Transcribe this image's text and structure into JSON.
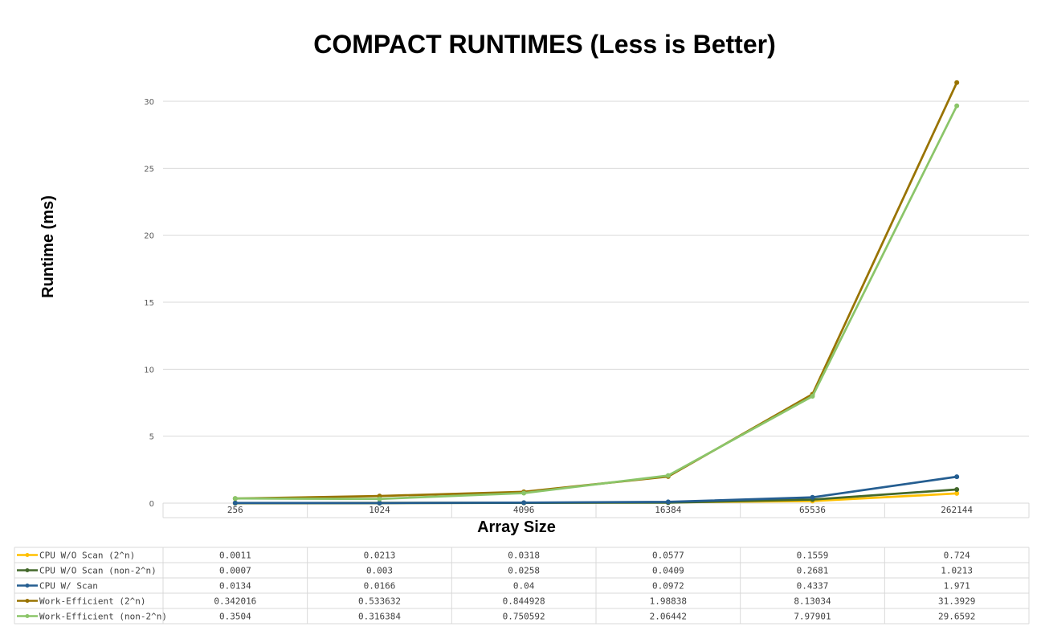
{
  "chart_data": {
    "type": "line",
    "title": "COMPACT RUNTIMES (Less is Better)",
    "xlabel": "Array Size",
    "ylabel": "Runtime (ms)",
    "categories": [
      "256",
      "1024",
      "4096",
      "16384",
      "65536",
      "262144"
    ],
    "ylim": [
      0,
      30
    ],
    "yticks": [
      0,
      5,
      10,
      15,
      20,
      25,
      30
    ],
    "grid": true,
    "legend": "data-table",
    "series": [
      {
        "name": "CPU W/O Scan (2^n)",
        "color": "#FFC000",
        "values": [
          0.0011,
          0.0213,
          0.0318,
          0.0577,
          0.1559,
          0.724
        ],
        "labels": [
          "0.0011",
          "0.0213",
          "0.0318",
          "0.0577",
          "0.1559",
          "0.724"
        ]
      },
      {
        "name": "CPU W/O Scan (non-2^n)",
        "color": "#43682B",
        "values": [
          0.0007,
          0.003,
          0.0258,
          0.0409,
          0.2681,
          1.0213
        ],
        "labels": [
          "0.0007",
          "0.003",
          "0.0258",
          "0.0409",
          "0.2681",
          "1.0213"
        ]
      },
      {
        "name": "CPU W/ Scan",
        "color": "#255E91",
        "values": [
          0.0134,
          0.0166,
          0.04,
          0.0972,
          0.4337,
          1.971
        ],
        "labels": [
          "0.0134",
          "0.0166",
          "0.04",
          "0.0972",
          "0.4337",
          "1.971"
        ]
      },
      {
        "name": "Work-Efficient (2^n)",
        "color": "#997300",
        "values": [
          0.342016,
          0.533632,
          0.844928,
          1.98838,
          8.13034,
          31.3929
        ],
        "labels": [
          "0.342016",
          "0.533632",
          "0.844928",
          "1.98838",
          "8.13034",
          "31.3929"
        ]
      },
      {
        "name": "Work-Efficient (non-2^n)",
        "color": "#8BC569",
        "values": [
          0.3504,
          0.316384,
          0.750592,
          2.06442,
          7.97901,
          29.6592
        ],
        "labels": [
          "0.3504",
          "0.316384",
          "0.750592",
          "2.06442",
          "7.97901",
          "29.6592"
        ]
      }
    ]
  }
}
